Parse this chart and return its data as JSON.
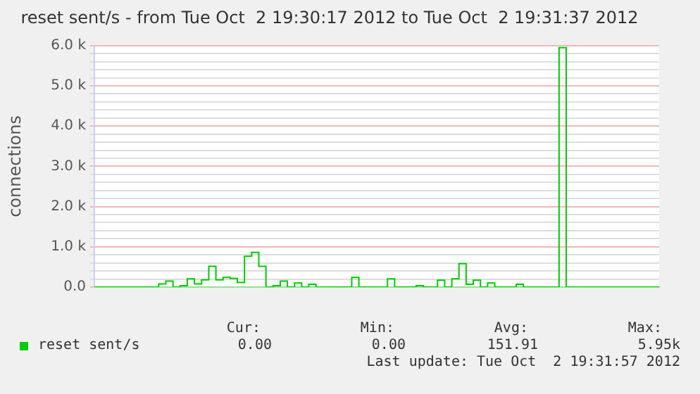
{
  "chart_data": {
    "type": "step",
    "title": "reset sent/s - from Tue Oct  2 19:30:17 2012 to Tue Oct  2 19:31:37 2012",
    "ylabel": "connections",
    "categories": [
      null,
      null,
      null,
      null,
      null,
      null,
      null,
      null,
      null,
      null,
      null,
      null,
      null,
      null,
      null,
      null,
      null,
      null,
      null,
      null,
      null,
      null,
      null,
      null,
      null,
      null,
      null,
      null,
      null,
      null,
      null,
      null,
      null,
      null,
      null,
      null,
      null,
      null,
      null,
      null,
      null,
      null,
      null,
      null,
      null,
      null,
      null,
      null,
      null,
      null,
      null,
      null,
      null,
      null,
      null,
      null,
      null,
      null,
      null,
      null,
      null,
      null,
      null,
      null,
      null,
      null,
      null,
      null,
      null,
      null,
      null,
      null,
      null,
      null,
      null,
      null,
      null,
      null,
      null,
      null
    ],
    "series": [
      {
        "name": "reset sent/s",
        "color": "#00cc00",
        "values": [
          0,
          0,
          0,
          0,
          0,
          0,
          0,
          0,
          0,
          80,
          150,
          0,
          35,
          205,
          80,
          180,
          515,
          180,
          240,
          215,
          115,
          765,
          860,
          515,
          0,
          35,
          150,
          0,
          100,
          0,
          70,
          0,
          0,
          0,
          0,
          0,
          240,
          0,
          0,
          0,
          0,
          205,
          0,
          0,
          0,
          35,
          0,
          0,
          170,
          0,
          205,
          580,
          70,
          170,
          0,
          100,
          0,
          0,
          0,
          70,
          0,
          0,
          0,
          0,
          0,
          5950,
          0,
          0,
          0,
          0,
          0,
          0,
          0,
          0,
          0,
          0,
          0,
          0,
          0,
          0
        ]
      }
    ],
    "ylim": [
      0,
      6000
    ],
    "yticks": [
      {
        "value": 0,
        "label": "0.0"
      },
      {
        "value": 200,
        "label": null
      },
      {
        "value": 400,
        "label": null
      },
      {
        "value": 600,
        "label": null
      },
      {
        "value": 800,
        "label": null
      },
      {
        "value": 1000,
        "label": "1.0 k"
      },
      {
        "value": 1200,
        "label": null
      },
      {
        "value": 1400,
        "label": null
      },
      {
        "value": 1600,
        "label": null
      },
      {
        "value": 1800,
        "label": null
      },
      {
        "value": 2000,
        "label": "2.0 k"
      },
      {
        "value": 2200,
        "label": null
      },
      {
        "value": 2400,
        "label": null
      },
      {
        "value": 2600,
        "label": null
      },
      {
        "value": 2800,
        "label": null
      },
      {
        "value": 3000,
        "label": "3.0 k"
      },
      {
        "value": 3200,
        "label": null
      },
      {
        "value": 3400,
        "label": null
      },
      {
        "value": 3600,
        "label": null
      },
      {
        "value": 3800,
        "label": null
      },
      {
        "value": 4000,
        "label": "4.0 k"
      },
      {
        "value": 4200,
        "label": null
      },
      {
        "value": 4400,
        "label": null
      },
      {
        "value": 4600,
        "label": null
      },
      {
        "value": 4800,
        "label": null
      },
      {
        "value": 5000,
        "label": "5.0 k"
      },
      {
        "value": 5200,
        "label": null
      },
      {
        "value": 5400,
        "label": null
      },
      {
        "value": 5600,
        "label": null
      },
      {
        "value": 5800,
        "label": null
      },
      {
        "value": 6000,
        "label": "6.0 k"
      }
    ],
    "grid": "y",
    "legend": "bottom",
    "marker": "none",
    "annotations": [
      "Cur:",
      "Min:",
      "Avg:",
      "Max:",
      "0.00",
      "0.00",
      "151.91",
      "5.95k",
      "Last update: Tue Oct  2 19:31:57 2012"
    ]
  }
}
